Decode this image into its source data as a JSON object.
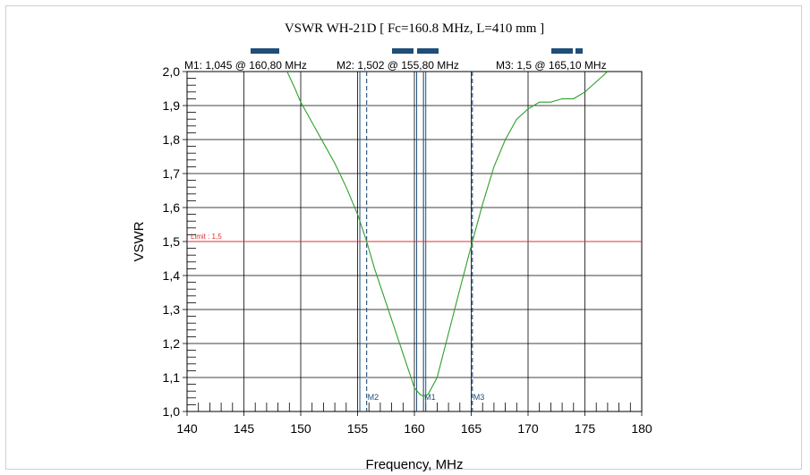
{
  "chart_data": {
    "type": "line",
    "title": "VSWR WH-21D [ Fc=160.8 MHz, L=410 mm ]",
    "xlabel": "Frequency, MHz",
    "ylabel": "VSWR",
    "xlim": [
      140,
      180
    ],
    "ylim": [
      1.0,
      2.0
    ],
    "x_ticks": [
      140,
      145,
      150,
      155,
      160,
      165,
      170,
      175,
      180
    ],
    "x_tick_labels": [
      "140",
      "145",
      "150",
      "155",
      "160",
      "165",
      "170",
      "175",
      "180"
    ],
    "y_ticks": [
      1.0,
      1.1,
      1.2,
      1.3,
      1.4,
      1.5,
      1.6,
      1.7,
      1.8,
      1.9,
      2.0
    ],
    "y_tick_labels": [
      "1,0",
      "1,1",
      "1,2",
      "1,3",
      "1,4",
      "1,5",
      "1,6",
      "1,7",
      "1,8",
      "1,9",
      "2,0"
    ],
    "grid": true,
    "series": [
      {
        "color": "#2ca02c",
        "x": [
          148.8,
          149.5,
          150,
          150.5,
          151,
          152,
          153,
          154,
          155,
          155.8,
          156.5,
          157,
          158,
          159,
          160,
          160.5,
          160.8,
          161.2,
          162,
          163,
          164,
          165.1,
          166,
          167,
          168,
          169,
          170,
          170.5,
          171,
          172,
          173,
          174,
          175,
          176,
          177
        ],
        "y": [
          2.0,
          1.95,
          1.91,
          1.88,
          1.85,
          1.79,
          1.73,
          1.66,
          1.58,
          1.5,
          1.42,
          1.37,
          1.27,
          1.17,
          1.07,
          1.05,
          1.045,
          1.05,
          1.1,
          1.23,
          1.36,
          1.5,
          1.61,
          1.72,
          1.8,
          1.86,
          1.89,
          1.9,
          1.91,
          1.91,
          1.92,
          1.92,
          1.94,
          1.97,
          2.0
        ]
      }
    ],
    "limit": {
      "value": 1.5,
      "label": "Limit : 1,5",
      "color": "#e03030"
    },
    "solid_lines_x": [
      155.2,
      160.2,
      161.0
    ],
    "markers": [
      {
        "name": "M1",
        "x": 160.8,
        "readout": "M1: 1,045  @ 160,80 MHz",
        "style": "solid"
      },
      {
        "name": "M2",
        "x": 155.8,
        "readout": "M2: 1,502  @ 155,80 MHz",
        "style": "dashed"
      },
      {
        "name": "M3",
        "x": 165.1,
        "readout": "M3: 1,5  @ 165,10 MHz",
        "style": "dashed"
      }
    ],
    "colors": {
      "marker": "#1f4e79",
      "grid": "#000000",
      "bars": "#1f4e79"
    }
  }
}
